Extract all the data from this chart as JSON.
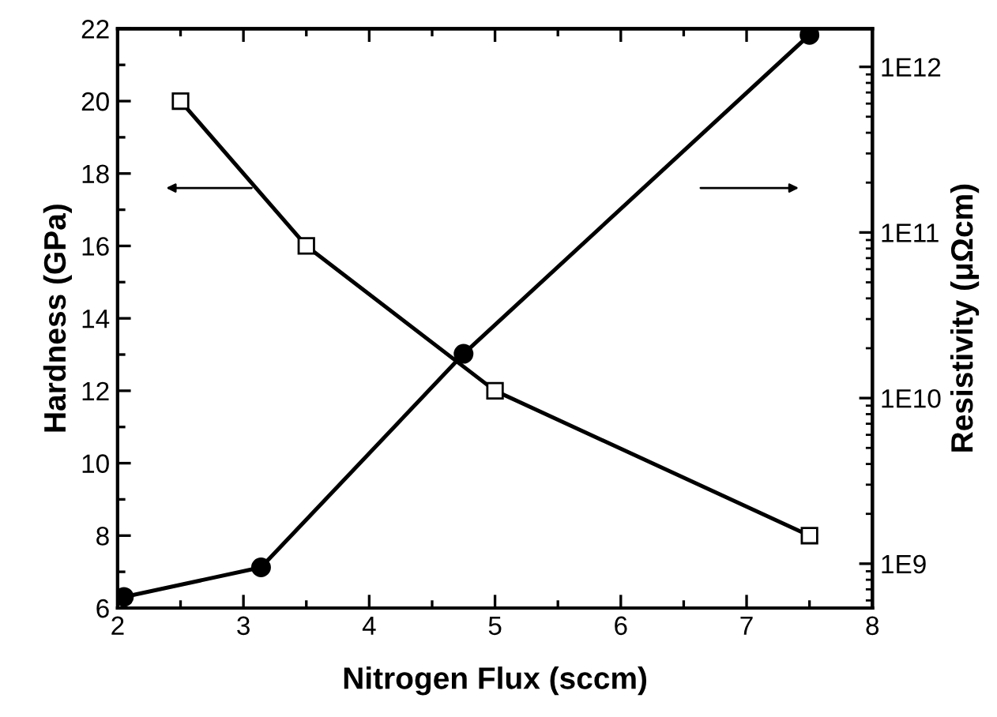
{
  "chart_data": {
    "type": "line",
    "xlabel": "Nitrogen Flux (sccm)",
    "ylabel": "Hardness (GPa)",
    "y2label": "Resistivity (μΩcm)",
    "xlim": [
      2,
      8
    ],
    "xticks": [
      2,
      3,
      4,
      5,
      6,
      7,
      8
    ],
    "ylim": [
      6,
      22
    ],
    "yticks": [
      6,
      8,
      10,
      12,
      14,
      16,
      18,
      20,
      22
    ],
    "y2lim": [
      540000000.0,
      1700000000000.0
    ],
    "y2ticks": [
      {
        "value": 1000000000.0,
        "label": "1E9"
      },
      {
        "value": 10000000000.0,
        "label": "1E10"
      },
      {
        "value": 100000000000.0,
        "label": "1E11"
      },
      {
        "value": 1000000000000.0,
        "label": "1E12"
      }
    ],
    "log": "y2",
    "grid": false,
    "legend": false,
    "line_style": "solid",
    "series": [
      {
        "color": "#000000",
        "marker": "square",
        "x": [
          2.5,
          3.5,
          5,
          7.5
        ],
        "values": [
          20,
          16,
          12,
          8
        ]
      },
      {
        "color": "#000000",
        "marker": "circle",
        "axis": "y2",
        "x": [
          2.05,
          3.14,
          4.75,
          7.5
        ],
        "values": [
          630000000.0,
          950000000.0,
          18500000000.0,
          1560000000000.0
        ]
      }
    ]
  }
}
